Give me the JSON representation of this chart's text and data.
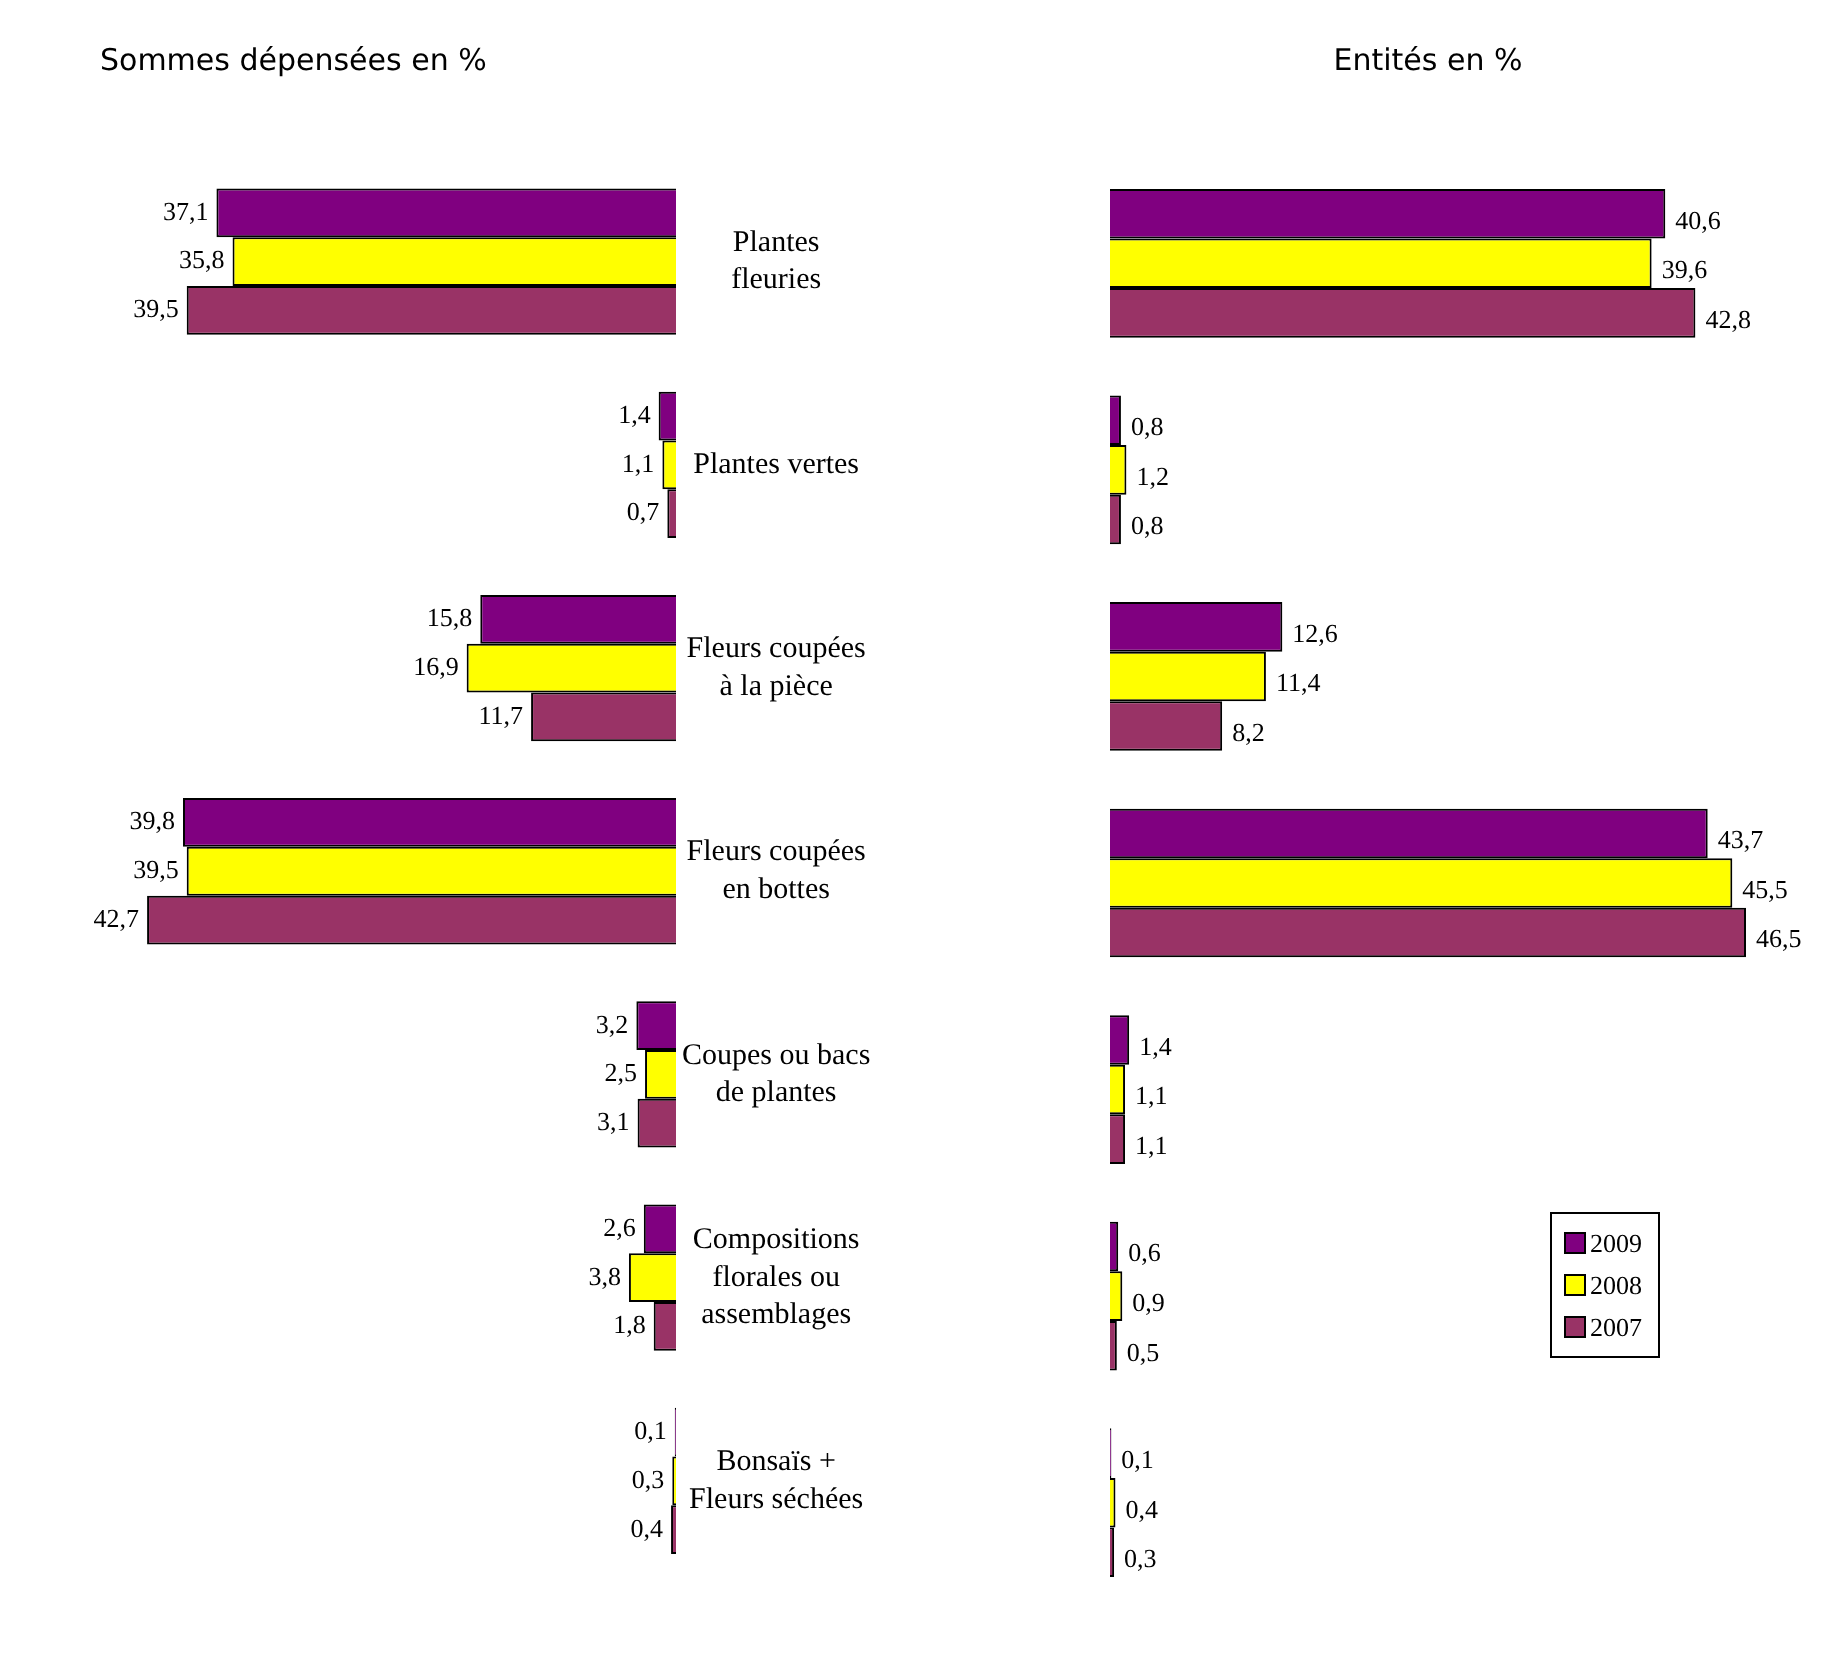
{
  "chart_data": [
    {
      "type": "bar",
      "orientation": "horizontal",
      "title": "Sommes dépensées en %",
      "categories": [
        "Plantes fleuries",
        "Plantes vertes",
        "Fleurs coupées à la pièce",
        "Fleurs coupées en bottes",
        "Coupes ou bacs de plantes",
        "Compositions florales ou assemblages",
        "Bonsaïs + Fleurs séchées"
      ],
      "series": [
        {
          "color": "#800080",
          "values": [
            37.1,
            1.4,
            15.8,
            39.8,
            3.2,
            2.6,
            0.1
          ],
          "value_labels": [
            "37,1",
            "1,4",
            "15,8",
            "39,8",
            "3,2",
            "2,6",
            "0,1"
          ]
        },
        {
          "color": "#ffff00",
          "values": [
            35.8,
            1.1,
            16.9,
            39.5,
            2.5,
            3.8,
            0.3
          ],
          "value_labels": [
            "35,8",
            "1,1",
            "16,9",
            "39,5",
            "2,5",
            "3,8",
            "0,3"
          ]
        },
        {
          "color": "#993366",
          "values": [
            39.5,
            0.7,
            11.7,
            42.7,
            3.1,
            1.8,
            0.4
          ],
          "value_labels": [
            "39,5",
            "0,7",
            "11,7",
            "42,7",
            "3,1",
            "1,8",
            "0,4"
          ]
        }
      ],
      "grid": false,
      "tick_labels": "y"
    },
    {
      "type": "bar",
      "orientation": "horizontal",
      "title": "Entités en %",
      "categories": [
        null,
        null,
        null,
        null,
        null,
        null,
        null
      ],
      "series": [
        {
          "name": "2009",
          "color": "#800080",
          "values": [
            40.6,
            0.8,
            12.6,
            43.7,
            1.4,
            0.6,
            0.1
          ],
          "value_labels": [
            "40,6",
            "0,8",
            "12,6",
            "43,7",
            "1,4",
            "0,6",
            "0,1"
          ]
        },
        {
          "name": "2008",
          "color": "#ffff00",
          "values": [
            39.6,
            1.2,
            11.4,
            45.5,
            1.1,
            0.9,
            0.4
          ],
          "value_labels": [
            "39,6",
            "1,2",
            "11,4",
            "45,5",
            "1,1",
            "0,9",
            "0,4"
          ]
        },
        {
          "name": "2007",
          "color": "#993366",
          "values": [
            42.8,
            0.8,
            8.2,
            46.5,
            1.1,
            0.5,
            0.3
          ],
          "value_labels": [
            "42,8",
            "0,8",
            "8,2",
            "46,5",
            "1,1",
            "0,5",
            "0,3"
          ]
        }
      ],
      "grid": false,
      "tick_labels": false,
      "legend": "right"
    }
  ]
}
